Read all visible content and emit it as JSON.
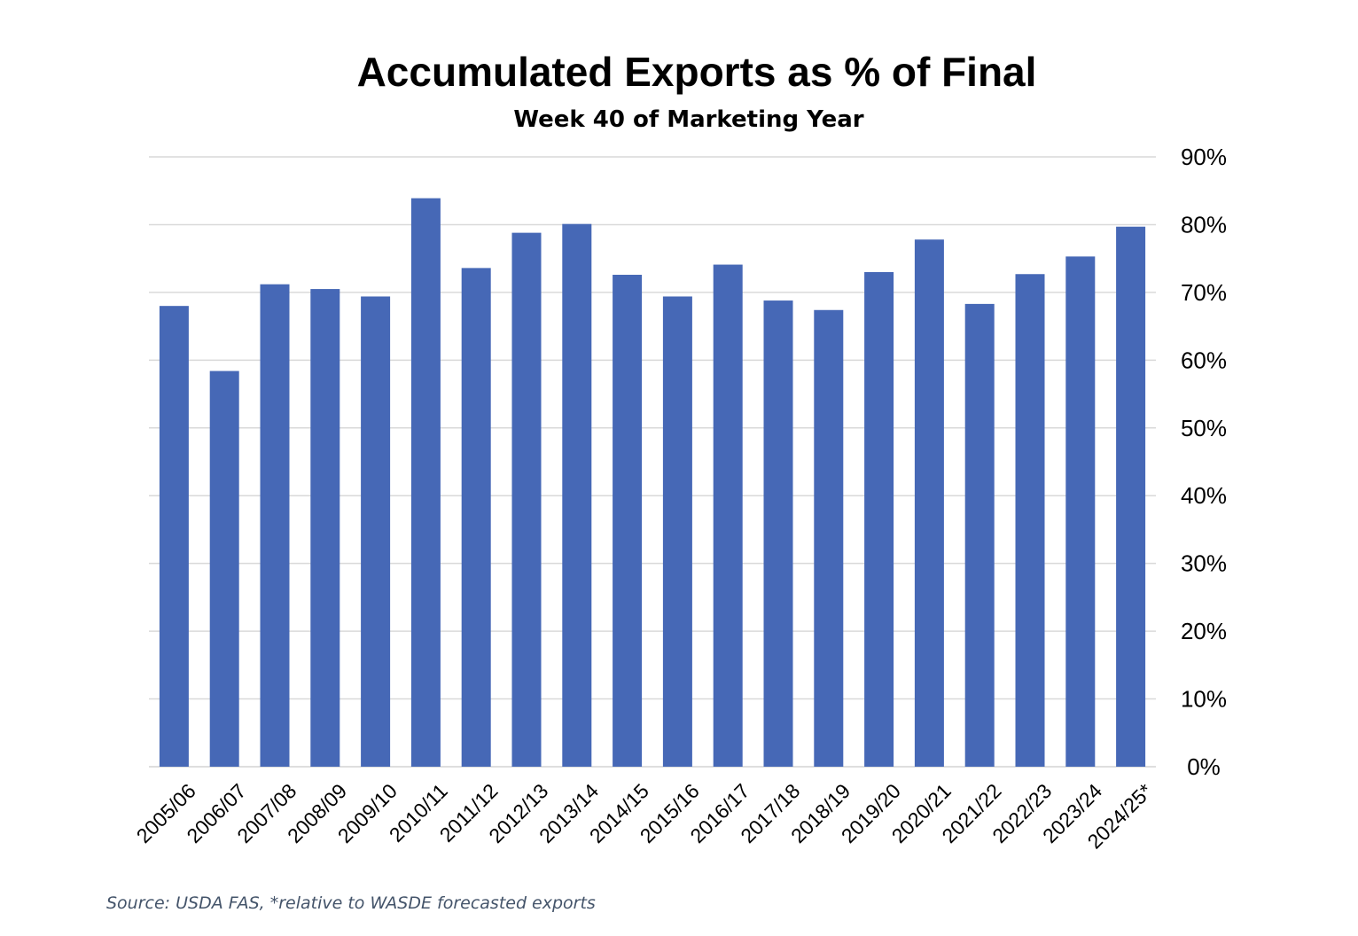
{
  "chart_data": {
    "type": "bar",
    "title": "Accumulated Exports as % of Final",
    "subtitle": "Week 40 of Marketing Year",
    "categories": [
      "2005/06",
      "2006/07",
      "2007/08",
      "2008/09",
      "2009/10",
      "2010/11",
      "2011/12",
      "2012/13",
      "2013/14",
      "2014/15",
      "2015/16",
      "2016/17",
      "2017/18",
      "2018/19",
      "2019/20",
      "2020/21",
      "2021/22",
      "2022/23",
      "2023/24",
      "2024/25*"
    ],
    "values": [
      68.0,
      58.4,
      71.2,
      70.5,
      69.4,
      83.9,
      73.6,
      78.8,
      80.1,
      72.6,
      69.4,
      74.1,
      68.8,
      67.4,
      73.0,
      77.8,
      68.3,
      72.7,
      75.3,
      79.7
    ],
    "ylim": [
      0,
      90
    ],
    "yticks": [
      0,
      10,
      20,
      30,
      40,
      50,
      60,
      70,
      80,
      90
    ],
    "ytick_labels": [
      "0%",
      "10%",
      "20%",
      "30%",
      "40%",
      "50%",
      "60%",
      "70%",
      "80%",
      "90%"
    ],
    "y_axis_side": "right",
    "grid": true,
    "bar_color": "#4668b6",
    "grid_color": "#d9d9d9"
  },
  "footer": {
    "source": "Source: USDA FAS, *relative to WASDE forecasted exports"
  }
}
